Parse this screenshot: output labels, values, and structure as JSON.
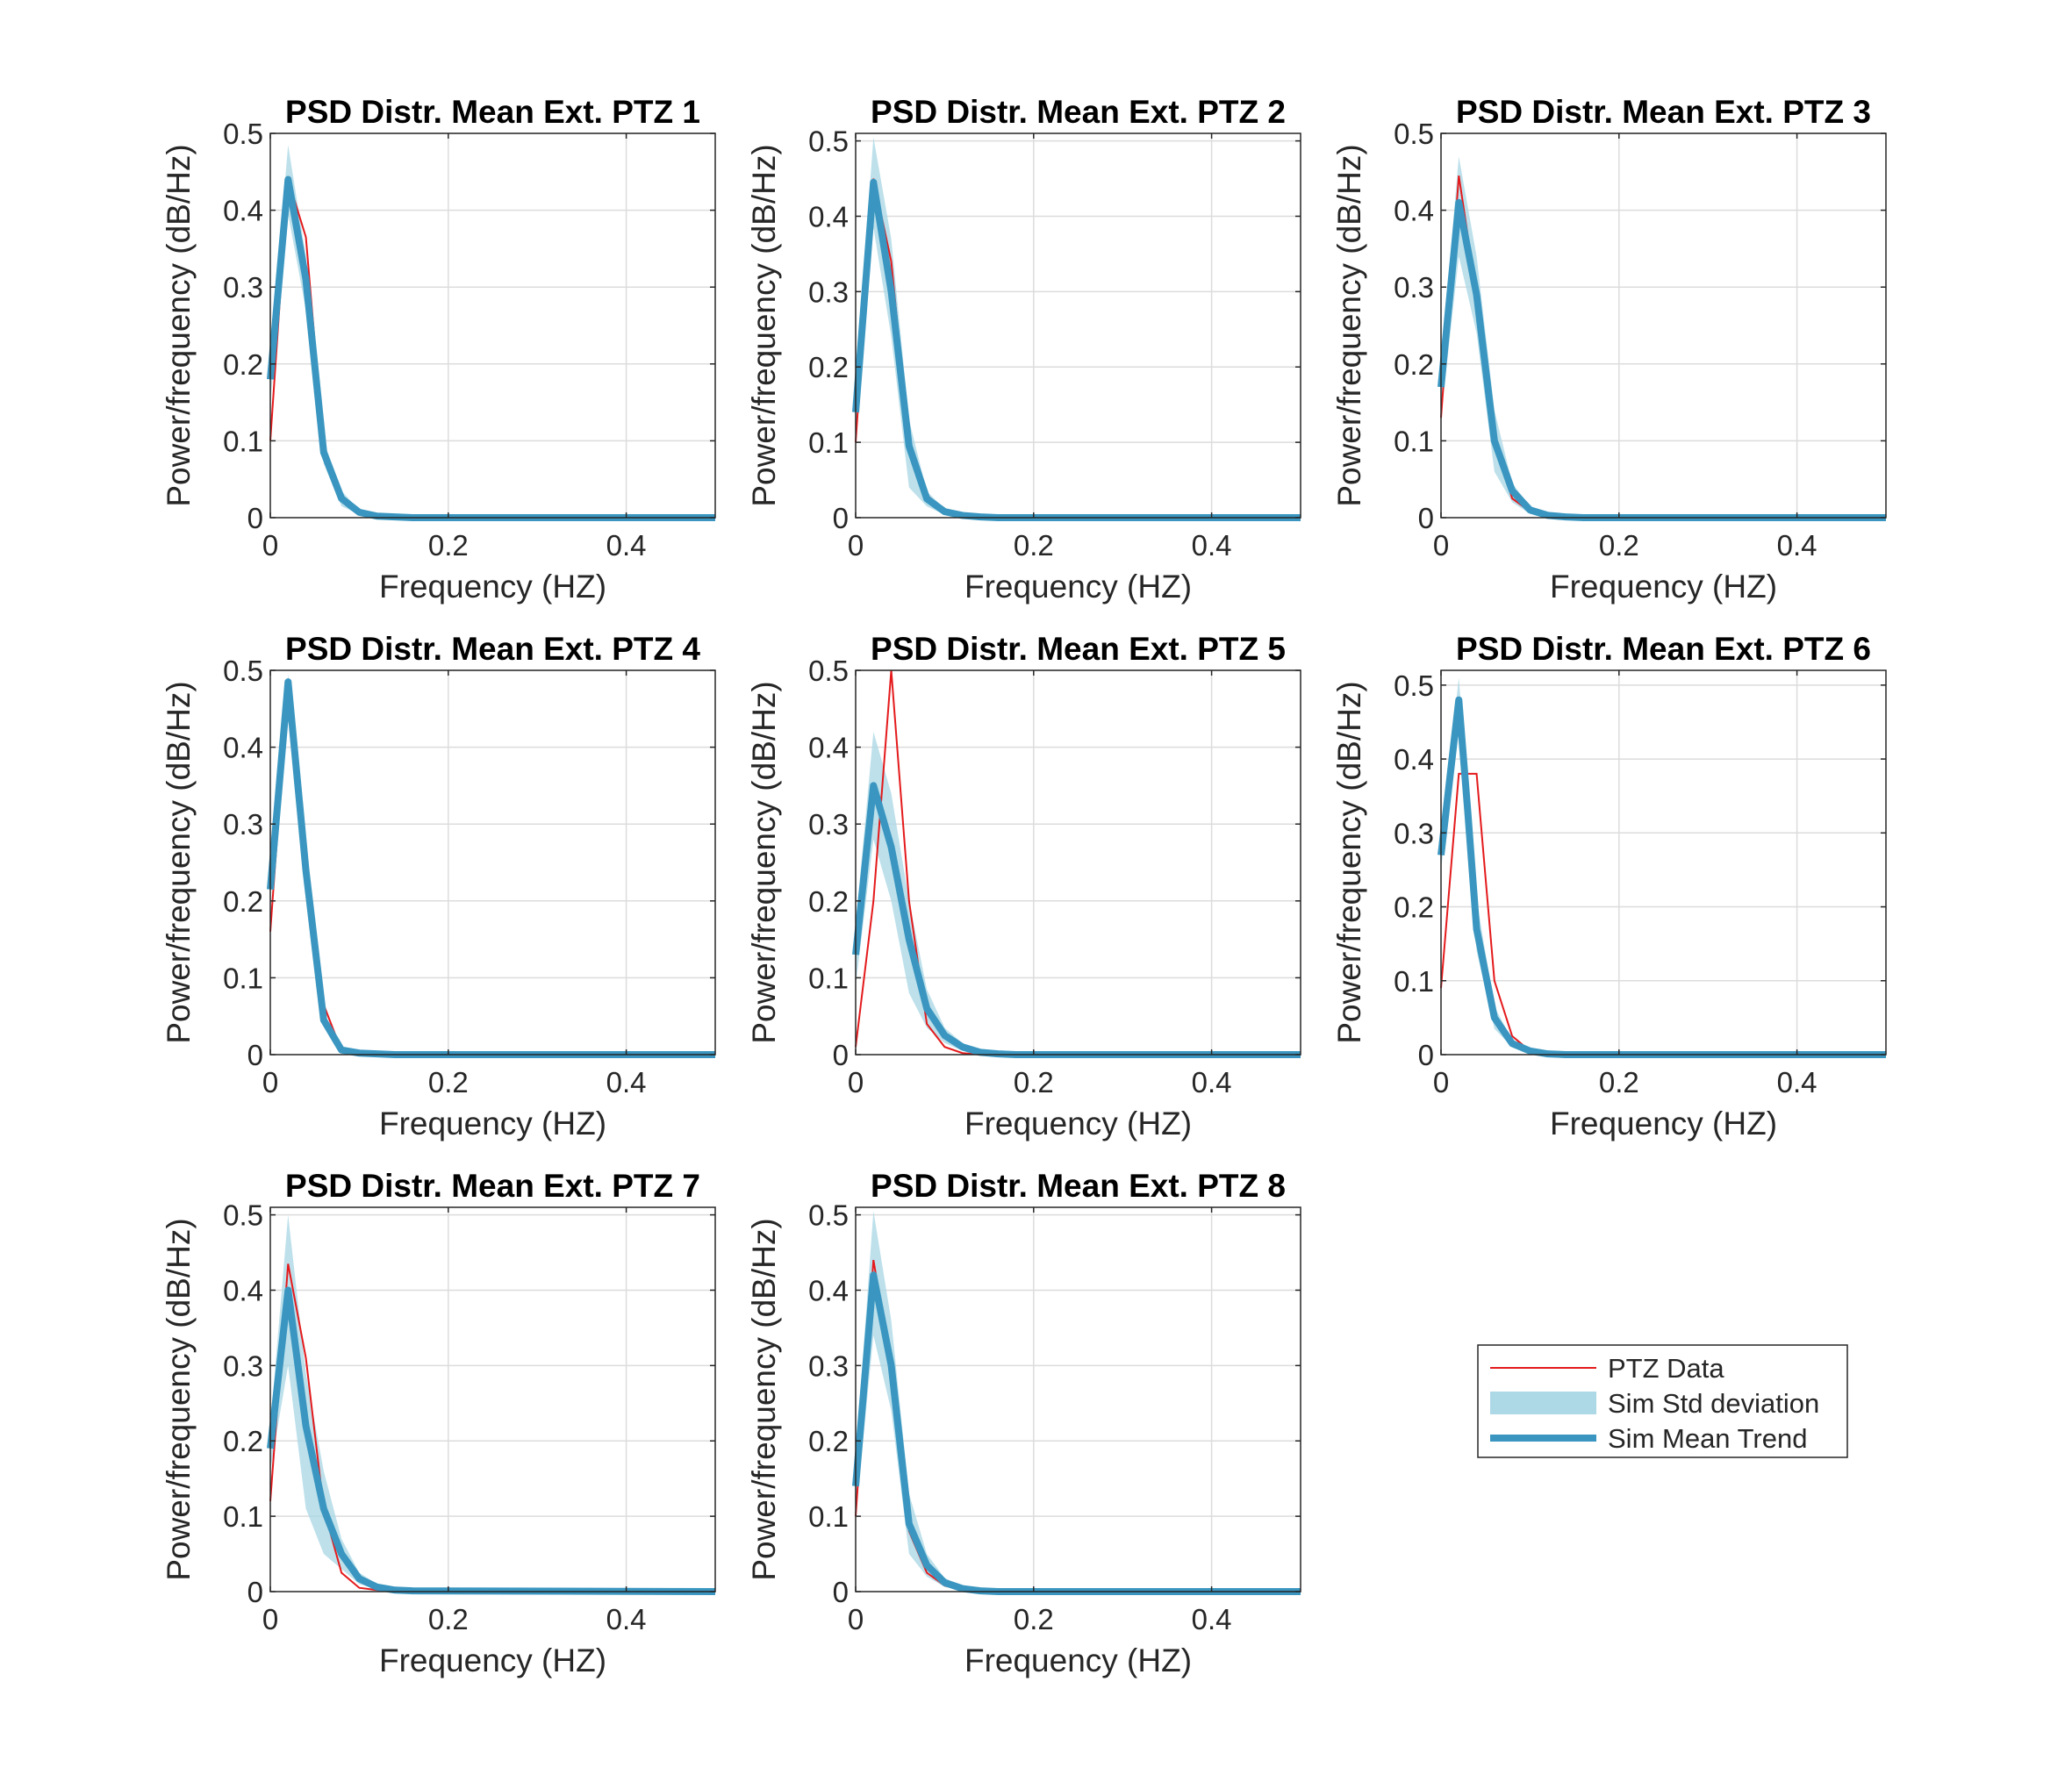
{
  "colors": {
    "data_line": "#e41a1c",
    "std_band": "#add8e6",
    "mean_line": "#3a96c0",
    "grid": "#dcdcdc",
    "axes": "#262626"
  },
  "legend": {
    "items": [
      {
        "key": "data",
        "label": "PTZ Data"
      },
      {
        "key": "std",
        "label": "Sim Std deviation"
      },
      {
        "key": "mean",
        "label": "Sim Mean Trend"
      }
    ]
  },
  "chart_data": [
    {
      "type": "line",
      "title": "PSD Distr. Mean Ext. PTZ 1",
      "xlabel": "Frequency (HZ)",
      "ylabel": "Power/frequency (dB/Hz)",
      "xlim": [
        0,
        0.5
      ],
      "ylim": [
        0,
        0.5
      ],
      "xticks": [
        "0",
        "0.2",
        "0.4"
      ],
      "xtick_values": [
        0,
        0.2,
        0.4
      ],
      "yticks": [
        "0",
        "0.1",
        "0.2",
        "0.3",
        "0.4",
        "0.5"
      ],
      "ytick_values": [
        0,
        0.1,
        0.2,
        0.3,
        0.4,
        0.5
      ],
      "grid": true,
      "x": [
        0,
        0.02,
        0.04,
        0.06,
        0.08,
        0.1,
        0.12,
        0.14,
        0.16,
        0.5
      ],
      "data": [
        0.1,
        0.44,
        0.365,
        0.09,
        0.03,
        0.005,
        0.002,
        0,
        0,
        0
      ],
      "mean": [
        0.18,
        0.44,
        0.31,
        0.085,
        0.025,
        0.007,
        0.002,
        0.001,
        0,
        0
      ],
      "upper": [
        0.21,
        0.485,
        0.34,
        0.1,
        0.035,
        0.01,
        0.003,
        0.001,
        0,
        0
      ],
      "lower": [
        0.15,
        0.395,
        0.27,
        0.07,
        0.015,
        0.004,
        0.001,
        0,
        0,
        0
      ]
    },
    {
      "type": "line",
      "title": "PSD Distr. Mean Ext. PTZ 2",
      "xlabel": "Frequency (HZ)",
      "ylabel": "Power/frequency (dB/Hz)",
      "xlim": [
        0,
        0.5
      ],
      "ylim": [
        0,
        0.51
      ],
      "xticks": [
        "0",
        "0.2",
        "0.4"
      ],
      "xtick_values": [
        0,
        0.2,
        0.4
      ],
      "yticks": [
        "0",
        "0.1",
        "0.2",
        "0.3",
        "0.4",
        "0.5"
      ],
      "ytick_values": [
        0,
        0.1,
        0.2,
        0.3,
        0.4,
        0.5
      ],
      "grid": true,
      "x": [
        0,
        0.02,
        0.04,
        0.06,
        0.08,
        0.1,
        0.12,
        0.14,
        0.16,
        0.5
      ],
      "data": [
        0.1,
        0.45,
        0.34,
        0.1,
        0.03,
        0.01,
        0.003,
        0,
        0,
        0
      ],
      "mean": [
        0.14,
        0.445,
        0.3,
        0.095,
        0.025,
        0.008,
        0.003,
        0.001,
        0,
        0
      ],
      "upper": [
        0.18,
        0.505,
        0.37,
        0.13,
        0.035,
        0.012,
        0.004,
        0.001,
        0,
        0
      ],
      "lower": [
        0.1,
        0.385,
        0.24,
        0.04,
        0.015,
        0.004,
        0.001,
        0,
        0,
        0
      ]
    },
    {
      "type": "line",
      "title": "PSD Distr. Mean Ext. PTZ 3",
      "xlabel": "Frequency (HZ)",
      "ylabel": "Power/frequency (dB/Hz)",
      "xlim": [
        0,
        0.5
      ],
      "ylim": [
        0,
        0.5
      ],
      "xticks": [
        "0",
        "0.2",
        "0.4"
      ],
      "xtick_values": [
        0,
        0.2,
        0.4
      ],
      "yticks": [
        "0",
        "0.1",
        "0.2",
        "0.3",
        "0.4",
        "0.5"
      ],
      "ytick_values": [
        0,
        0.1,
        0.2,
        0.3,
        0.4,
        0.5
      ],
      "grid": true,
      "x": [
        0,
        0.02,
        0.04,
        0.06,
        0.08,
        0.1,
        0.12,
        0.14,
        0.16,
        0.5
      ],
      "data": [
        0.13,
        0.445,
        0.29,
        0.1,
        0.025,
        0.008,
        0.002,
        0,
        0,
        0
      ],
      "mean": [
        0.17,
        0.41,
        0.29,
        0.1,
        0.035,
        0.01,
        0.003,
        0.001,
        0,
        0
      ],
      "upper": [
        0.2,
        0.47,
        0.34,
        0.14,
        0.045,
        0.015,
        0.005,
        0.002,
        0,
        0
      ],
      "lower": [
        0.13,
        0.34,
        0.24,
        0.06,
        0.02,
        0.005,
        0.001,
        0,
        0,
        0
      ]
    },
    {
      "type": "line",
      "title": "PSD Distr. Mean Ext. PTZ 4",
      "xlabel": "Frequency (HZ)",
      "ylabel": "Power/frequency (dB/Hz)",
      "xlim": [
        0,
        0.5
      ],
      "ylim": [
        0,
        0.5
      ],
      "xticks": [
        "0",
        "0.2",
        "0.4"
      ],
      "xtick_values": [
        0,
        0.2,
        0.4
      ],
      "yticks": [
        "0",
        "0.1",
        "0.2",
        "0.3",
        "0.4",
        "0.5"
      ],
      "ytick_values": [
        0,
        0.1,
        0.2,
        0.3,
        0.4,
        0.5
      ],
      "grid": true,
      "x": [
        0,
        0.02,
        0.04,
        0.06,
        0.08,
        0.1,
        0.12,
        0.14,
        0.16,
        0.5
      ],
      "data": [
        0.16,
        0.48,
        0.25,
        0.065,
        0.005,
        0.002,
        0,
        0,
        0,
        0
      ],
      "mean": [
        0.215,
        0.485,
        0.24,
        0.045,
        0.006,
        0.002,
        0.001,
        0,
        0,
        0
      ],
      "upper": [
        0.225,
        0.495,
        0.25,
        0.05,
        0.008,
        0.003,
        0.001,
        0,
        0,
        0
      ],
      "lower": [
        0.205,
        0.475,
        0.23,
        0.04,
        0.004,
        0.001,
        0,
        0,
        0,
        0
      ]
    },
    {
      "type": "line",
      "title": "PSD Distr. Mean Ext. PTZ 5",
      "xlabel": "Frequency (HZ)",
      "ylabel": "Power/frequency (dB/Hz)",
      "xlim": [
        0,
        0.5
      ],
      "ylim": [
        0,
        0.5
      ],
      "xticks": [
        "0",
        "0.2",
        "0.4"
      ],
      "xtick_values": [
        0,
        0.2,
        0.4
      ],
      "yticks": [
        "0",
        "0.1",
        "0.2",
        "0.3",
        "0.4",
        "0.5"
      ],
      "ytick_values": [
        0,
        0.1,
        0.2,
        0.3,
        0.4,
        0.5
      ],
      "grid": true,
      "x": [
        0,
        0.02,
        0.04,
        0.06,
        0.08,
        0.1,
        0.12,
        0.14,
        0.16,
        0.18,
        0.5
      ],
      "data": [
        0.01,
        0.2,
        0.5,
        0.2,
        0.04,
        0.01,
        0.002,
        0,
        0,
        0,
        0
      ],
      "mean": [
        0.13,
        0.35,
        0.27,
        0.15,
        0.06,
        0.025,
        0.01,
        0.003,
        0.001,
        0,
        0
      ],
      "upper": [
        0.17,
        0.42,
        0.34,
        0.2,
        0.085,
        0.035,
        0.015,
        0.005,
        0.002,
        0,
        0
      ],
      "lower": [
        0.09,
        0.28,
        0.2,
        0.08,
        0.035,
        0.015,
        0.005,
        0.001,
        0,
        0,
        0
      ]
    },
    {
      "type": "line",
      "title": "PSD Distr. Mean Ext. PTZ 6",
      "xlabel": "Frequency (HZ)",
      "ylabel": "Power/frequency (dB/Hz)",
      "xlim": [
        0,
        0.5
      ],
      "ylim": [
        0,
        0.52
      ],
      "xticks": [
        "0",
        "0.2",
        "0.4"
      ],
      "xtick_values": [
        0,
        0.2,
        0.4
      ],
      "yticks": [
        "0",
        "0.1",
        "0.2",
        "0.3",
        "0.4",
        "0.5"
      ],
      "ytick_values": [
        0,
        0.1,
        0.2,
        0.3,
        0.4,
        0.5
      ],
      "grid": true,
      "x": [
        0,
        0.02,
        0.03,
        0.04,
        0.06,
        0.08,
        0.1,
        0.12,
        0.14,
        0.5
      ],
      "data": [
        0.09,
        0.38,
        0.38,
        0.38,
        0.1,
        0.025,
        0.005,
        0.001,
        0,
        0
      ],
      "mean": [
        0.27,
        0.48,
        0.33,
        0.17,
        0.05,
        0.015,
        0.005,
        0.001,
        0,
        0
      ],
      "upper": [
        0.29,
        0.51,
        0.36,
        0.21,
        0.065,
        0.02,
        0.007,
        0.002,
        0,
        0
      ],
      "lower": [
        0.25,
        0.45,
        0.3,
        0.14,
        0.035,
        0.01,
        0.003,
        0.001,
        0,
        0
      ]
    },
    {
      "type": "line",
      "title": "PSD Distr. Mean Ext. PTZ 7",
      "xlabel": "Frequency (HZ)",
      "ylabel": "Power/frequency (dB/Hz)",
      "xlim": [
        0,
        0.5
      ],
      "ylim": [
        0,
        0.51
      ],
      "xticks": [
        "0",
        "0.2",
        "0.4"
      ],
      "xtick_values": [
        0,
        0.2,
        0.4
      ],
      "yticks": [
        "0",
        "0.1",
        "0.2",
        "0.3",
        "0.4",
        "0.5"
      ],
      "ytick_values": [
        0,
        0.1,
        0.2,
        0.3,
        0.4,
        0.5
      ],
      "grid": true,
      "x": [
        0,
        0.02,
        0.04,
        0.06,
        0.08,
        0.1,
        0.12,
        0.14,
        0.16,
        0.5
      ],
      "data": [
        0.12,
        0.435,
        0.31,
        0.11,
        0.025,
        0.005,
        0.002,
        0,
        0,
        0
      ],
      "mean": [
        0.19,
        0.4,
        0.22,
        0.11,
        0.05,
        0.017,
        0.006,
        0.002,
        0.001,
        0
      ],
      "upper": [
        0.22,
        0.5,
        0.29,
        0.16,
        0.07,
        0.025,
        0.01,
        0.003,
        0.001,
        0
      ],
      "lower": [
        0.16,
        0.3,
        0.11,
        0.05,
        0.03,
        0.01,
        0.003,
        0.001,
        0,
        0
      ]
    },
    {
      "type": "line",
      "title": "PSD Distr. Mean Ext. PTZ 8",
      "xlabel": "Frequency (HZ)",
      "ylabel": "Power/frequency (dB/Hz)",
      "xlim": [
        0,
        0.5
      ],
      "ylim": [
        0,
        0.51
      ],
      "xticks": [
        "0",
        "0.2",
        "0.4"
      ],
      "xtick_values": [
        0,
        0.2,
        0.4
      ],
      "yticks": [
        "0",
        "0.1",
        "0.2",
        "0.3",
        "0.4",
        "0.5"
      ],
      "ytick_values": [
        0,
        0.1,
        0.2,
        0.3,
        0.4,
        0.5
      ],
      "grid": true,
      "x": [
        0,
        0.02,
        0.04,
        0.06,
        0.08,
        0.1,
        0.12,
        0.14,
        0.16,
        0.5
      ],
      "data": [
        0.1,
        0.44,
        0.3,
        0.08,
        0.025,
        0.008,
        0.002,
        0,
        0,
        0
      ],
      "mean": [
        0.14,
        0.42,
        0.3,
        0.09,
        0.035,
        0.012,
        0.004,
        0.001,
        0,
        0
      ],
      "upper": [
        0.18,
        0.505,
        0.36,
        0.13,
        0.05,
        0.018,
        0.006,
        0.002,
        0,
        0
      ],
      "lower": [
        0.1,
        0.34,
        0.24,
        0.05,
        0.02,
        0.006,
        0.002,
        0,
        0,
        0
      ]
    }
  ]
}
